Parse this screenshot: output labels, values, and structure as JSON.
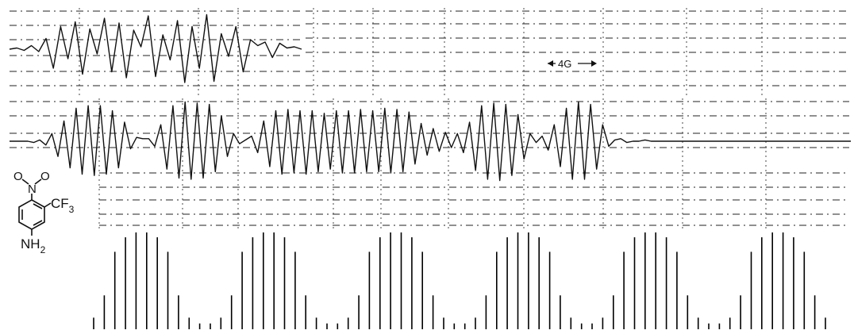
{
  "chart_data": [
    {
      "type": "line",
      "name": "upper-spectrum-fragment",
      "x": [
        0,
        1,
        2,
        3,
        4,
        5,
        6,
        7,
        8,
        9,
        10,
        11,
        12,
        13,
        14,
        15,
        16,
        17,
        18,
        19,
        20,
        21,
        22,
        23,
        24,
        25,
        26,
        27,
        28,
        29,
        30,
        31,
        32,
        33,
        34,
        35,
        36,
        37,
        38,
        39,
        40
      ],
      "y": [
        0,
        0.1,
        -0.1,
        0.3,
        -0.2,
        0.9,
        -1.6,
        1.9,
        -0.8,
        2.3,
        -2.1,
        1.7,
        -0.4,
        2.6,
        -1.9,
        2.2,
        -2.4,
        1.6,
        0.2,
        2.8,
        -2.3,
        1.2,
        -0.9,
        2.4,
        -2.8,
        1.9,
        -1.6,
        2.9,
        -2.7,
        1.3,
        -0.6,
        1.9,
        -1.9,
        0.8,
        0.3,
        0.6,
        -0.7,
        0.5,
        0.1,
        0.2,
        0
      ]
    },
    {
      "type": "line",
      "name": "full-spectrum",
      "scale_label": "4G",
      "x": [
        0,
        1,
        2,
        3,
        4,
        5,
        6,
        7,
        8,
        9,
        10,
        11,
        12,
        13,
        14,
        15,
        16,
        17,
        18,
        19,
        20,
        21,
        22,
        23,
        24,
        25,
        26,
        27,
        28,
        29,
        30,
        31,
        32,
        33,
        34,
        35,
        36,
        37,
        38,
        39,
        40,
        41,
        42,
        43,
        44,
        45,
        46,
        47,
        48,
        49,
        50,
        51,
        52,
        53,
        54,
        55,
        56,
        57,
        58,
        59,
        60,
        61,
        62,
        63,
        64,
        65,
        66,
        67,
        68,
        69,
        70,
        71,
        72,
        73,
        74,
        75,
        76,
        77,
        78,
        79,
        80,
        81,
        82,
        83,
        84,
        85,
        86,
        87,
        88,
        89,
        90,
        91,
        92,
        93,
        94,
        95,
        96,
        97,
        98,
        99,
        100,
        101,
        102,
        103,
        104,
        105,
        106,
        107,
        108,
        109,
        110,
        111,
        112,
        113,
        114,
        115,
        116,
        117,
        118,
        119,
        120,
        121,
        122,
        123,
        124,
        125,
        126,
        127,
        128,
        129,
        130,
        131,
        132,
        133,
        134,
        135,
        136,
        137,
        138,
        139
      ],
      "y": [
        0,
        0,
        0,
        0,
        -0.1,
        0.1,
        -0.3,
        0.6,
        -1.2,
        1.6,
        -2.1,
        2.6,
        -2.6,
        2.8,
        -2.7,
        2.8,
        -2.6,
        2.4,
        -2.1,
        1.5,
        -0.6,
        0.3,
        0.2,
        0.2,
        -0.4,
        1.3,
        -2.2,
        2.8,
        -2.9,
        3.1,
        -3.0,
        3.0,
        -2.9,
        2.9,
        -2.4,
        2.0,
        -1.2,
        0.6,
        -0.2,
        0.1,
        0.4,
        -0.9,
        1.6,
        -2.0,
        2.4,
        -2.6,
        2.5,
        -2.5,
        2.4,
        -2.6,
        2.4,
        -2.4,
        2.2,
        -2.2,
        2.4,
        -2.5,
        2.4,
        -2.5,
        2.5,
        -2.4,
        2.4,
        -2.4,
        2.6,
        -2.5,
        2.5,
        -2.4,
        2.3,
        -1.8,
        1.4,
        -1.1,
        1.0,
        -0.8,
        0.7,
        -0.5,
        0.6,
        -0.9,
        1.5,
        -2.3,
        2.8,
        -3.0,
        3.0,
        -3.1,
        2.9,
        -2.7,
        2.1,
        -1.4,
        0.6,
        -0.1,
        0.4,
        -0.7,
        1.3,
        -2.0,
        2.6,
        -3.0,
        3.1,
        -3.0,
        2.9,
        -2.2,
        1.3,
        -0.4,
        0.1,
        0.2,
        -0.1,
        0.0,
        0.0,
        0.1,
        0.0,
        0.0,
        0.0,
        0.0,
        0.0,
        0.0,
        0.0,
        0.0,
        0.0,
        0.0,
        0.0,
        0.0,
        0.0,
        0.0,
        0.0,
        0.0,
        0.0,
        0.0,
        0.0,
        0.0,
        0.0,
        0.0,
        0.0,
        0.0,
        0.0,
        0.0,
        0.0,
        0.0,
        0.0,
        0.0,
        0.0,
        0.0,
        0.0,
        0.0
      ]
    },
    {
      "type": "bar",
      "name": "stick-spectrum",
      "values": [
        0.12,
        0.35,
        0.8,
        0.95,
        1.0,
        1.0,
        0.95,
        0.8,
        0.35,
        0.12,
        0.06,
        0.06,
        0.12,
        0.35,
        0.8,
        0.95,
        1.0,
        1.0,
        0.95,
        0.8,
        0.35,
        0.12,
        0.06,
        0.06,
        0.12,
        0.35,
        0.8,
        0.95,
        1.0,
        1.0,
        0.95,
        0.8,
        0.35,
        0.12,
        0.06,
        0.06,
        0.12,
        0.35,
        0.8,
        0.95,
        1.0,
        1.0,
        0.95,
        0.8,
        0.35,
        0.12,
        0.06,
        0.06,
        0.12,
        0.35,
        0.8,
        0.95,
        1.0,
        1.0,
        0.95,
        0.8,
        0.35,
        0.12,
        0.06,
        0.06,
        0.12,
        0.35,
        0.8,
        0.95,
        1.0,
        1.0,
        0.95,
        0.8,
        0.35,
        0.12
      ]
    }
  ],
  "labels": {
    "field_scale": "4G",
    "molecule": {
      "nitro_N": "N",
      "nitro_O1": "O",
      "nitro_O2": "O",
      "cf3_main": "CF",
      "cf3_sub": "3",
      "amine_main": "NH",
      "amine_sub": "2"
    }
  }
}
